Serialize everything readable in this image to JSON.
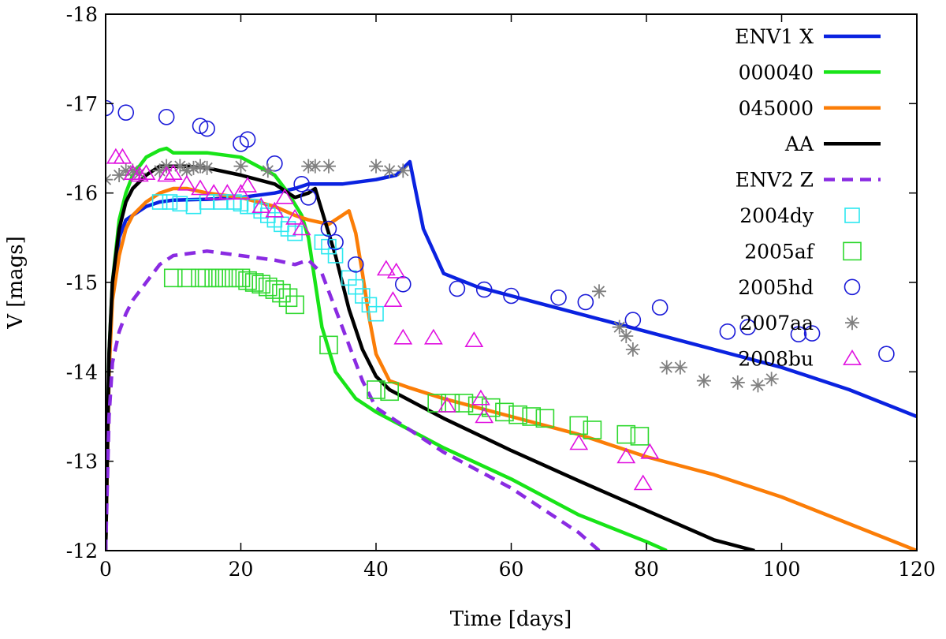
{
  "chart_data": {
    "type": "line",
    "title": "",
    "xlabel": "Time [days]",
    "ylabel": "V [mags]",
    "xlim": [
      0,
      120
    ],
    "ylim": [
      -12,
      -18
    ],
    "xticks": [
      0,
      20,
      40,
      60,
      80,
      100,
      120
    ],
    "yticks": [
      -12,
      -13,
      -14,
      -15,
      -16,
      -17,
      -18
    ],
    "tick_labels": {
      "x": [
        "0",
        "20",
        "40",
        "60",
        "80",
        "100",
        "120"
      ],
      "y": [
        "-12",
        "-13",
        "-14",
        "-15",
        "-16",
        "-17",
        "-18"
      ]
    },
    "legend_position": "top-right",
    "series": [
      {
        "name": "ENV1 X",
        "kind": "line",
        "color": "#0a22e0",
        "dash": false,
        "x": [
          0,
          0.5,
          1,
          2,
          3,
          4,
          6,
          8,
          10,
          15,
          20,
          25,
          28,
          30,
          35,
          40,
          43,
          45,
          47,
          50,
          55,
          60,
          70,
          80,
          90,
          100,
          110,
          120
        ],
        "y": [
          -12.0,
          -14.0,
          -14.9,
          -15.5,
          -15.7,
          -15.75,
          -15.85,
          -15.9,
          -15.92,
          -15.93,
          -15.95,
          -16.0,
          -16.05,
          -16.1,
          -16.1,
          -16.15,
          -16.2,
          -16.35,
          -15.6,
          -15.1,
          -14.95,
          -14.85,
          -14.65,
          -14.45,
          -14.25,
          -14.05,
          -13.8,
          -13.5
        ]
      },
      {
        "name": "000040",
        "kind": "line",
        "color": "#18e418",
        "dash": false,
        "x": [
          0,
          0.5,
          1,
          2,
          3,
          4,
          6,
          8,
          9,
          10,
          12,
          15,
          20,
          25,
          27,
          29,
          30,
          31,
          32,
          34,
          37,
          40,
          45,
          50,
          60,
          70,
          80,
          83
        ],
        "y": [
          -12.0,
          -14.2,
          -15.0,
          -15.7,
          -16.0,
          -16.2,
          -16.4,
          -16.48,
          -16.5,
          -16.45,
          -16.45,
          -16.45,
          -16.4,
          -16.2,
          -16.0,
          -15.75,
          -15.5,
          -15.0,
          -14.5,
          -14.0,
          -13.7,
          -13.55,
          -13.35,
          -13.15,
          -12.8,
          -12.4,
          -12.1,
          -12.0
        ]
      },
      {
        "name": "045000",
        "kind": "line",
        "color": "#fb7d07",
        "dash": false,
        "x": [
          0,
          0.5,
          1,
          2,
          3,
          4,
          6,
          8,
          10,
          12,
          15,
          20,
          25,
          28,
          30,
          33,
          35,
          36,
          37,
          38,
          39,
          40,
          42,
          45,
          50,
          60,
          70,
          80,
          90,
          100,
          110,
          120
        ],
        "y": [
          -12.0,
          -14.0,
          -14.8,
          -15.3,
          -15.6,
          -15.75,
          -15.9,
          -16.0,
          -16.05,
          -16.05,
          -16.0,
          -15.95,
          -15.85,
          -15.75,
          -15.7,
          -15.65,
          -15.75,
          -15.8,
          -15.55,
          -15.1,
          -14.6,
          -14.2,
          -13.9,
          -13.82,
          -13.7,
          -13.5,
          -13.3,
          -13.05,
          -12.85,
          -12.6,
          -12.3,
          -12.0
        ]
      },
      {
        "name": "AA",
        "kind": "line",
        "color": "#000000",
        "dash": false,
        "x": [
          0,
          0.5,
          1,
          2,
          3,
          4,
          6,
          8,
          10,
          12,
          15,
          20,
          25,
          28,
          30,
          31,
          32,
          34,
          36,
          38,
          40,
          42,
          50,
          60,
          70,
          80,
          90,
          96
        ],
        "y": [
          -12.0,
          -14.2,
          -15.0,
          -15.6,
          -15.9,
          -16.05,
          -16.2,
          -16.3,
          -16.3,
          -16.3,
          -16.28,
          -16.2,
          -16.1,
          -15.95,
          -16.0,
          -16.05,
          -15.8,
          -15.3,
          -14.7,
          -14.25,
          -13.95,
          -13.8,
          -13.48,
          -13.12,
          -12.78,
          -12.45,
          -12.12,
          -12.0
        ]
      },
      {
        "name": "ENV2 Z",
        "kind": "line",
        "color": "#8a2be2",
        "dash": true,
        "x": [
          0,
          0.5,
          1,
          2,
          3,
          4,
          6,
          8,
          10,
          15,
          20,
          25,
          28,
          30,
          32,
          34,
          36,
          38,
          40,
          45,
          50,
          60,
          70,
          73
        ],
        "y": [
          -12.0,
          -13.5,
          -14.1,
          -14.45,
          -14.65,
          -14.8,
          -15.0,
          -15.2,
          -15.3,
          -15.35,
          -15.3,
          -15.25,
          -15.2,
          -15.25,
          -15.1,
          -14.7,
          -14.3,
          -13.9,
          -13.6,
          -13.35,
          -13.1,
          -12.7,
          -12.2,
          -12.0
        ]
      },
      {
        "name": "2004dy",
        "kind": "marker",
        "marker": "square",
        "color": "#2ce8f0",
        "x": [
          8,
          9.5,
          11,
          13,
          15,
          17,
          19,
          20,
          21,
          22,
          23,
          24,
          25,
          26,
          27,
          28,
          32,
          33,
          34,
          36,
          37,
          38,
          39,
          40
        ],
        "y": [
          -15.9,
          -15.9,
          -15.88,
          -15.85,
          -15.9,
          -15.9,
          -15.9,
          -15.88,
          -15.85,
          -15.85,
          -15.8,
          -15.75,
          -15.7,
          -15.65,
          -15.6,
          -15.55,
          -15.45,
          -15.4,
          -15.3,
          -15.05,
          -14.95,
          -14.85,
          -14.75,
          -14.65
        ]
      },
      {
        "name": "2005af",
        "kind": "marker",
        "marker": "square-large",
        "color": "#2ed82e",
        "x": [
          10,
          12,
          14,
          15,
          16,
          17,
          18,
          19,
          20,
          21,
          22,
          23,
          24,
          25,
          26,
          27,
          28,
          33,
          40,
          42,
          49,
          51,
          53,
          55,
          57,
          59,
          61,
          63,
          65,
          70,
          72,
          77,
          79
        ],
        "y": [
          -15.05,
          -15.05,
          -15.05,
          -15.05,
          -15.05,
          -15.05,
          -15.05,
          -15.05,
          -15.05,
          -15.02,
          -15.0,
          -14.98,
          -14.95,
          -14.92,
          -14.88,
          -14.83,
          -14.75,
          -14.3,
          -13.8,
          -13.78,
          -13.65,
          -13.65,
          -13.65,
          -13.62,
          -13.6,
          -13.55,
          -13.52,
          -13.5,
          -13.48,
          -13.4,
          -13.35,
          -13.3,
          -13.28
        ]
      },
      {
        "name": "2005hd",
        "kind": "marker",
        "marker": "circle",
        "color": "#1a1ad8",
        "x": [
          0,
          3,
          9,
          14,
          15,
          20,
          21,
          25,
          29,
          30,
          33,
          34,
          37,
          44,
          52,
          56,
          60,
          67,
          71,
          78,
          82,
          92,
          95,
          102.5,
          104.5,
          115.5
        ],
        "y": [
          -16.95,
          -16.9,
          -16.85,
          -16.75,
          -16.72,
          -16.55,
          -16.6,
          -16.33,
          -16.1,
          -15.95,
          -15.6,
          -15.45,
          -15.2,
          -14.98,
          -14.93,
          -14.92,
          -14.85,
          -14.83,
          -14.78,
          -14.58,
          -14.72,
          -14.45,
          -14.5,
          -14.42,
          -14.43,
          -14.2
        ]
      },
      {
        "name": "2007aa",
        "kind": "marker",
        "marker": "asterisk",
        "color": "#808080",
        "x": [
          0,
          2,
          3,
          4,
          5,
          8,
          9,
          11,
          12,
          13,
          14,
          15,
          20,
          24,
          30,
          31,
          33,
          40,
          42,
          44,
          73,
          76,
          77,
          78,
          83,
          85,
          88.5,
          93.5,
          96.5,
          98.5
        ],
        "y": [
          -16.15,
          -16.2,
          -16.25,
          -16.25,
          -16.22,
          -16.25,
          -16.3,
          -16.3,
          -16.25,
          -16.28,
          -16.3,
          -16.28,
          -16.3,
          -16.25,
          -16.3,
          -16.3,
          -16.3,
          -16.3,
          -16.25,
          -16.25,
          -14.9,
          -14.5,
          -14.4,
          -14.25,
          -14.05,
          -14.05,
          -13.9,
          -13.88,
          -13.85,
          -13.92
        ]
      },
      {
        "name": "2008bu",
        "kind": "marker",
        "marker": "triangle",
        "color": "#e010e0",
        "x": [
          1.5,
          2.5,
          4,
          5,
          6,
          9,
          10,
          12,
          14,
          16,
          18,
          20,
          21,
          23,
          25,
          26.5,
          28,
          29,
          41.5,
          42.5,
          43,
          44,
          48.5,
          50.5,
          54.5,
          55.5,
          56,
          70,
          77,
          79.5,
          80.5
        ],
        "y": [
          -16.4,
          -16.4,
          -16.22,
          -16.2,
          -16.22,
          -16.2,
          -16.22,
          -16.1,
          -16.05,
          -16.0,
          -16.0,
          -16.0,
          -16.08,
          -15.85,
          -15.8,
          -15.95,
          -15.72,
          -15.6,
          -15.15,
          -14.8,
          -15.12,
          -14.38,
          -14.38,
          -13.62,
          -14.35,
          -13.7,
          -13.5,
          -13.2,
          -13.05,
          -12.75,
          -13.1
        ]
      }
    ]
  }
}
